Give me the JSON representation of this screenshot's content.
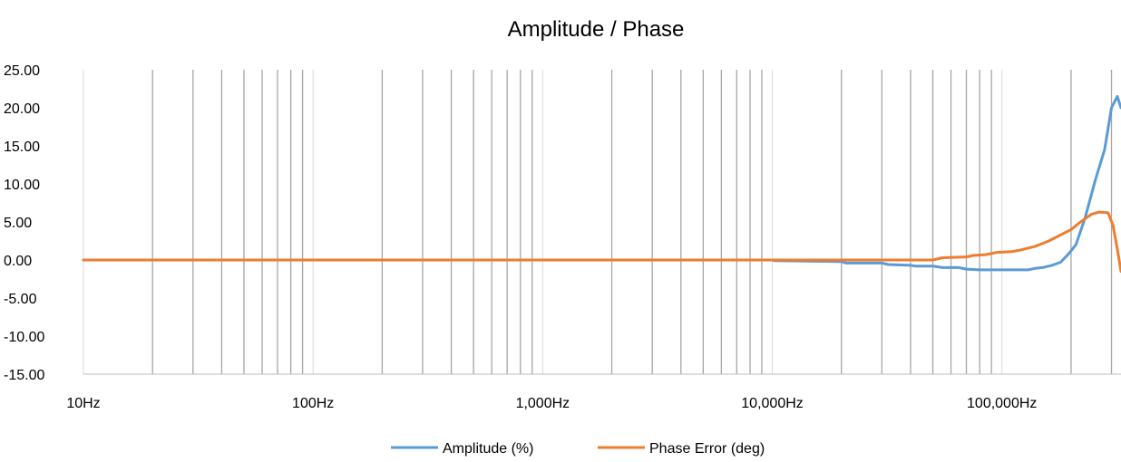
{
  "chart_data": {
    "type": "line",
    "title": "Amplitude / Phase",
    "xlabel": "",
    "ylabel": "",
    "x_scale": "log",
    "xlim": [
      10,
      330000
    ],
    "ylim": [
      -15,
      25
    ],
    "y_ticks": [
      "25.00",
      "20.00",
      "15.00",
      "10.00",
      "5.00",
      "0.00",
      "-5.00",
      "-10.00",
      "-15.00"
    ],
    "x_ticks": [
      {
        "value": 10,
        "label": "10Hz"
      },
      {
        "value": 100,
        "label": "100Hz"
      },
      {
        "value": 1000,
        "label": "1,000Hz"
      },
      {
        "value": 10000,
        "label": "10,000Hz"
      },
      {
        "value": 100000,
        "label": "100,000Hz"
      }
    ],
    "grid": "vertical",
    "legend_position": "bottom",
    "series": [
      {
        "name": "Amplitude (%)",
        "color": "#5B9BD5",
        "points": [
          [
            10,
            0
          ],
          [
            10000,
            0
          ],
          [
            10200,
            -0.1
          ],
          [
            20000,
            -0.2
          ],
          [
            21000,
            -0.4
          ],
          [
            30000,
            -0.4
          ],
          [
            32000,
            -0.6
          ],
          [
            40000,
            -0.7
          ],
          [
            42000,
            -0.8
          ],
          [
            50000,
            -0.8
          ],
          [
            55000,
            -1.0
          ],
          [
            65000,
            -1.0
          ],
          [
            70000,
            -1.2
          ],
          [
            80000,
            -1.3
          ],
          [
            100000,
            -1.3
          ],
          [
            130000,
            -1.3
          ],
          [
            140000,
            -1.1
          ],
          [
            150000,
            -1.0
          ],
          [
            165000,
            -0.7
          ],
          [
            180000,
            -0.3
          ],
          [
            195000,
            0.8
          ],
          [
            210000,
            2.0
          ],
          [
            230000,
            5.5
          ],
          [
            255000,
            10.5
          ],
          [
            280000,
            14.5
          ],
          [
            300000,
            20.0
          ],
          [
            318000,
            21.5
          ],
          [
            330000,
            20.0
          ]
        ]
      },
      {
        "name": "Phase Error (deg)",
        "color": "#ED7D31",
        "points": [
          [
            10,
            0
          ],
          [
            50000,
            0
          ],
          [
            55000,
            0.3
          ],
          [
            70000,
            0.4
          ],
          [
            75000,
            0.6
          ],
          [
            85000,
            0.7
          ],
          [
            95000,
            1.0
          ],
          [
            110000,
            1.1
          ],
          [
            120000,
            1.3
          ],
          [
            140000,
            1.8
          ],
          [
            160000,
            2.5
          ],
          [
            180000,
            3.3
          ],
          [
            200000,
            4.0
          ],
          [
            220000,
            5.0
          ],
          [
            245000,
            6.0
          ],
          [
            265000,
            6.3
          ],
          [
            290000,
            6.2
          ],
          [
            305000,
            4.5
          ],
          [
            320000,
            1.0
          ],
          [
            330000,
            -1.5
          ]
        ]
      }
    ]
  }
}
